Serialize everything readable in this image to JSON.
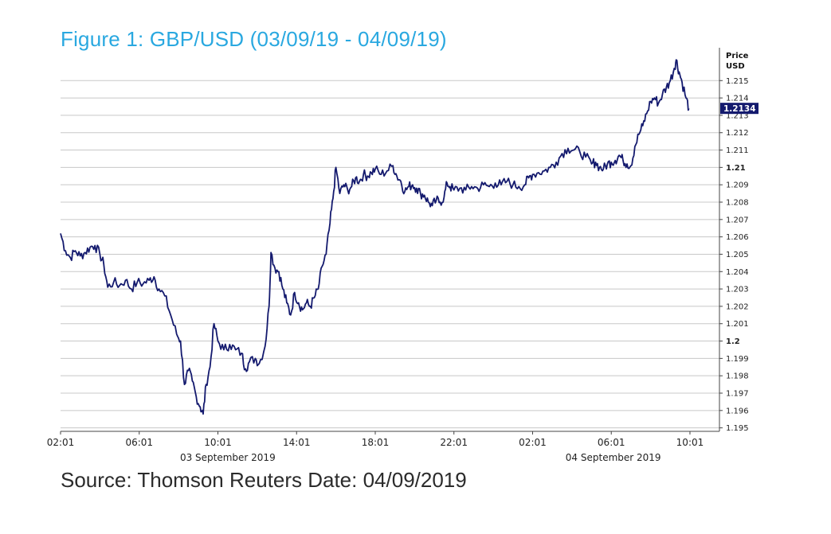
{
  "figure_title": "Figure 1: GBP/USD (03/09/19 - 04/09/19)",
  "source_text": "Source: Thomson Reuters Date: 04/09/2019",
  "colors": {
    "title": "#29a8e0",
    "line": "#141a6e",
    "grid": "#c8c8c8",
    "badge": "#141a6e"
  },
  "chart_data": {
    "type": "line",
    "title": "Figure 1: GBP/USD (03/09/19 - 04/09/19)",
    "ylabel": "Price USD",
    "y_label_lines": [
      "Price",
      "USD"
    ],
    "ylim": [
      1.1948,
      1.2168
    ],
    "y_ticks": [
      1.195,
      1.196,
      1.197,
      1.198,
      1.199,
      1.2,
      1.201,
      1.202,
      1.203,
      1.204,
      1.205,
      1.206,
      1.207,
      1.208,
      1.209,
      1.21,
      1.211,
      1.212,
      1.213,
      1.214,
      1.215
    ],
    "y_tick_labels": [
      "1.195",
      "1.196",
      "1.197",
      "1.198",
      "1.199",
      "1.2",
      "1.201",
      "1.202",
      "1.203",
      "1.204",
      "1.205",
      "1.206",
      "1.207",
      "1.208",
      "1.209",
      "1.21",
      "1.211",
      "1.212",
      "1.213",
      "1.214",
      "1.215"
    ],
    "y_bold_ticks": [
      "1.2",
      "1.21"
    ],
    "x_ticks": [
      "02:01",
      "06:01",
      "10:01",
      "14:01",
      "18:01",
      "22:01",
      "02:01",
      "06:01",
      "10:01"
    ],
    "x_tick_hours": [
      2,
      6,
      10,
      14,
      18,
      22,
      26,
      30,
      34
    ],
    "xlim_hours": [
      2,
      35.5
    ],
    "date_labels": [
      {
        "text": "03 September 2019",
        "hour": 10.5
      },
      {
        "text": "04 September 2019",
        "hour": 30.1
      }
    ],
    "last_value_label": "1.2134",
    "series": [
      {
        "values": [
          [
            2.0,
            1.2062
          ],
          [
            2.25,
            1.2052
          ],
          [
            2.5,
            1.2048
          ],
          [
            2.75,
            1.2052
          ],
          [
            3.0,
            1.2049
          ],
          [
            3.25,
            1.2051
          ],
          [
            3.5,
            1.2054
          ],
          [
            3.75,
            1.2055
          ],
          [
            4.0,
            1.205
          ],
          [
            4.2,
            1.2044
          ],
          [
            4.4,
            1.2031
          ],
          [
            4.7,
            1.2034
          ],
          [
            5.0,
            1.2032
          ],
          [
            5.3,
            1.2035
          ],
          [
            5.6,
            1.203
          ],
          [
            5.9,
            1.2034
          ],
          [
            6.2,
            1.2033
          ],
          [
            6.5,
            1.2035
          ],
          [
            6.75,
            1.2037
          ],
          [
            7.0,
            1.203
          ],
          [
            7.3,
            1.2026
          ],
          [
            7.6,
            1.2015
          ],
          [
            7.9,
            1.2004
          ],
          [
            8.1,
            1.2
          ],
          [
            8.3,
            1.1975
          ],
          [
            8.5,
            1.1983
          ],
          [
            8.7,
            1.1977
          ],
          [
            8.9,
            1.1968
          ],
          [
            9.1,
            1.1962
          ],
          [
            9.25,
            1.1958
          ],
          [
            9.4,
            1.1975
          ],
          [
            9.6,
            1.1985
          ],
          [
            9.8,
            1.201
          ],
          [
            10.0,
            1.2
          ],
          [
            10.3,
            1.1995
          ],
          [
            10.6,
            1.1998
          ],
          [
            10.9,
            1.1995
          ],
          [
            11.2,
            1.1993
          ],
          [
            11.4,
            1.1984
          ],
          [
            11.6,
            1.1988
          ],
          [
            11.9,
            1.199
          ],
          [
            12.1,
            1.1987
          ],
          [
            12.4,
            1.1997
          ],
          [
            12.6,
            1.202
          ],
          [
            12.7,
            1.2051
          ],
          [
            12.9,
            1.2042
          ],
          [
            13.1,
            1.204
          ],
          [
            13.3,
            1.203
          ],
          [
            13.5,
            1.2022
          ],
          [
            13.7,
            1.2015
          ],
          [
            13.9,
            1.2028
          ],
          [
            14.1,
            1.2022
          ],
          [
            14.3,
            1.2018
          ],
          [
            14.5,
            1.2022
          ],
          [
            14.7,
            1.202
          ],
          [
            14.9,
            1.2025
          ],
          [
            15.1,
            1.203
          ],
          [
            15.3,
            1.2043
          ],
          [
            15.5,
            1.205
          ],
          [
            15.7,
            1.2068
          ],
          [
            15.85,
            1.2082
          ],
          [
            16.0,
            1.21
          ],
          [
            16.2,
            1.2085
          ],
          [
            16.4,
            1.209
          ],
          [
            16.6,
            1.2087
          ],
          [
            16.8,
            1.2089
          ],
          [
            17.0,
            1.2094
          ],
          [
            17.2,
            1.2092
          ],
          [
            17.4,
            1.2096
          ],
          [
            17.6,
            1.2095
          ],
          [
            17.8,
            1.2097
          ],
          [
            18.0,
            1.2099
          ],
          [
            18.3,
            1.2096
          ],
          [
            18.6,
            1.2098
          ],
          [
            18.9,
            1.2101
          ],
          [
            19.1,
            1.2095
          ],
          [
            19.3,
            1.2092
          ],
          [
            19.5,
            1.2086
          ],
          [
            19.7,
            1.2089
          ],
          [
            19.9,
            1.209
          ],
          [
            20.1,
            1.2088
          ],
          [
            20.3,
            1.2085
          ],
          [
            20.5,
            1.2084
          ],
          [
            20.7,
            1.208
          ],
          [
            20.9,
            1.2078
          ],
          [
            21.1,
            1.2081
          ],
          [
            21.3,
            1.208
          ],
          [
            21.5,
            1.2083
          ],
          [
            21.65,
            1.2091
          ],
          [
            21.8,
            1.2089
          ],
          [
            22.0,
            1.2087
          ],
          [
            22.3,
            1.2088
          ],
          [
            22.6,
            1.2087
          ],
          [
            22.9,
            1.2089
          ],
          [
            23.2,
            1.2088
          ],
          [
            23.5,
            1.209
          ],
          [
            23.8,
            1.2089
          ],
          [
            24.1,
            1.2091
          ],
          [
            24.4,
            1.209
          ],
          [
            24.7,
            1.2092
          ],
          [
            25.0,
            1.209
          ],
          [
            25.3,
            1.2089
          ],
          [
            25.6,
            1.209
          ],
          [
            25.8,
            1.2094
          ],
          [
            26.0,
            1.2096
          ],
          [
            26.3,
            1.2097
          ],
          [
            26.6,
            1.2098
          ],
          [
            26.9,
            1.21
          ],
          [
            27.2,
            1.2103
          ],
          [
            27.5,
            1.2108
          ],
          [
            27.8,
            1.2111
          ],
          [
            28.1,
            1.211
          ],
          [
            28.4,
            1.2109
          ],
          [
            28.7,
            1.2106
          ],
          [
            29.0,
            1.2102
          ],
          [
            29.2,
            1.2103
          ],
          [
            29.4,
            1.21
          ],
          [
            29.6,
            1.2099
          ],
          [
            29.8,
            1.2102
          ],
          [
            30.0,
            1.2103
          ],
          [
            30.2,
            1.2104
          ],
          [
            30.4,
            1.2107
          ],
          [
            30.6,
            1.2104
          ],
          [
            30.8,
            1.2102
          ],
          [
            31.0,
            1.2101
          ],
          [
            31.2,
            1.2112
          ],
          [
            31.4,
            1.2119
          ],
          [
            31.6,
            1.2124
          ],
          [
            31.8,
            1.2131
          ],
          [
            32.0,
            1.2138
          ],
          [
            32.2,
            1.214
          ],
          [
            32.4,
            1.2137
          ],
          [
            32.6,
            1.2142
          ],
          [
            32.8,
            1.2146
          ],
          [
            33.0,
            1.215
          ],
          [
            33.2,
            1.2157
          ],
          [
            33.3,
            1.2162
          ],
          [
            33.45,
            1.2155
          ],
          [
            33.6,
            1.2149
          ],
          [
            33.8,
            1.214
          ],
          [
            33.95,
            1.2134
          ]
        ]
      }
    ]
  }
}
